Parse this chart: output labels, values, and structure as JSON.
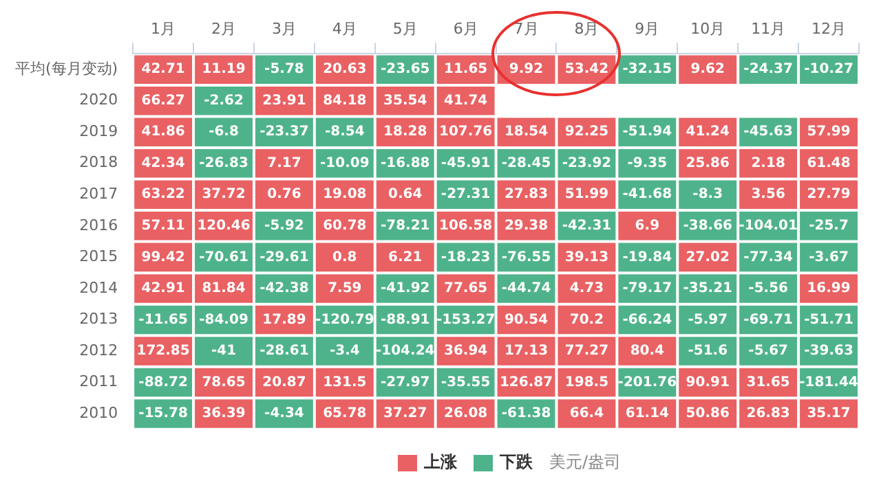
{
  "chart_data": {
    "type": "heatmap",
    "categories": [
      "1月",
      "2月",
      "3月",
      "4月",
      "5月",
      "6月",
      "7月",
      "8月",
      "9月",
      "10月",
      "11月",
      "12月"
    ],
    "y_categories": [
      "平均(每月变动)",
      "2020",
      "2019",
      "2018",
      "2017",
      "2016",
      "2015",
      "2014",
      "2013",
      "2012",
      "2011",
      "2010"
    ],
    "cells": [
      [
        42.71,
        11.19,
        -5.78,
        20.63,
        -23.65,
        11.65,
        9.92,
        53.42,
        -32.15,
        9.62,
        -24.37,
        -10.27
      ],
      [
        66.27,
        -2.62,
        23.91,
        84.18,
        35.54,
        41.74,
        null,
        null,
        null,
        null,
        null,
        null
      ],
      [
        41.86,
        -6.8,
        -23.37,
        -8.54,
        18.28,
        107.76,
        18.54,
        92.25,
        -51.94,
        41.24,
        -45.63,
        57.99
      ],
      [
        42.34,
        -26.83,
        7.17,
        -10.09,
        -16.88,
        -45.91,
        -28.45,
        -23.92,
        -9.35,
        25.86,
        2.18,
        61.48
      ],
      [
        63.22,
        37.72,
        0.76,
        19.08,
        0.64,
        -27.31,
        27.83,
        51.99,
        -41.68,
        -8.3,
        3.56,
        27.79
      ],
      [
        57.11,
        120.46,
        -5.92,
        60.78,
        -78.21,
        106.58,
        29.38,
        -42.31,
        6.9,
        -38.66,
        -104.01,
        -25.7
      ],
      [
        99.42,
        -70.61,
        -29.61,
        0.8,
        6.21,
        -18.23,
        -76.55,
        39.13,
        -19.84,
        27.02,
        -77.34,
        -3.67
      ],
      [
        42.91,
        81.84,
        -42.38,
        7.59,
        -41.92,
        77.65,
        -44.74,
        4.73,
        -79.17,
        -35.21,
        -5.56,
        16.99
      ],
      [
        -11.65,
        -84.09,
        17.89,
        -120.79,
        -88.91,
        -153.27,
        90.54,
        70.2,
        -66.24,
        -5.97,
        -69.71,
        -51.71
      ],
      [
        172.85,
        -41,
        -28.61,
        -3.4,
        -104.24,
        36.94,
        17.13,
        77.27,
        80.4,
        -51.6,
        -5.67,
        -39.63
      ],
      [
        -88.72,
        78.65,
        20.87,
        131.5,
        -27.97,
        -35.55,
        126.87,
        198.5,
        -201.76,
        90.91,
        31.65,
        -181.44
      ],
      [
        -15.78,
        36.39,
        -4.34,
        65.78,
        37.27,
        26.08,
        -61.38,
        66.4,
        61.14,
        50.86,
        26.83,
        35.17
      ]
    ],
    "colors": [
      "#e96163",
      "#4eb38b"
    ],
    "data_labels": true,
    "annotations": [
      "上涨",
      "下跌",
      "美元/盎司"
    ]
  }
}
